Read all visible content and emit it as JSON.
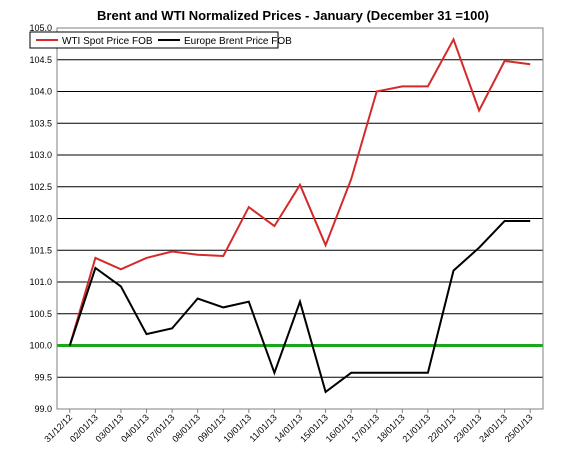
{
  "chart_data": {
    "type": "line",
    "title": "Brent and WTI Normalized Prices  -   January (December 31 =100)",
    "categories": [
      "31/12/12",
      "02/01/13",
      "03/01/13",
      "04/01/13",
      "07/01/13",
      "08/01/13",
      "09/01/13",
      "10/01/13",
      "11/01/13",
      "14/01/13",
      "15/01/13",
      "16/01/13",
      "17/01/13",
      "18/01/13",
      "21/01/13",
      "22/01/13",
      "23/01/13",
      "24/01/13",
      "25/01/13"
    ],
    "series": [
      {
        "name": "WTI Spot Price FOB",
        "color": "#d42a2a",
        "values": [
          100.0,
          101.38,
          101.2,
          101.38,
          101.48,
          101.43,
          101.41,
          102.18,
          101.88,
          102.53,
          101.58,
          102.62,
          104.0,
          104.08,
          104.08,
          104.82,
          103.7,
          104.48,
          104.43
        ]
      },
      {
        "name": "Europe Brent Price FOB",
        "color": "#000000",
        "values": [
          100.0,
          101.22,
          100.93,
          100.18,
          100.27,
          100.74,
          100.6,
          100.69,
          99.57,
          100.69,
          99.27,
          99.57,
          99.57,
          99.57,
          99.57,
          101.18,
          101.54,
          101.96,
          101.96
        ]
      }
    ],
    "reference_line": {
      "value": 100.0,
      "color": "#1aa81a"
    },
    "ylim": [
      99.0,
      105.0
    ],
    "yticks": [
      "99.0",
      "99.5",
      "100.0",
      "100.5",
      "101.0",
      "101.5",
      "102.0",
      "102.5",
      "103.0",
      "103.5",
      "104.0",
      "104.5",
      "105.0"
    ],
    "xlabel": "",
    "ylabel": "",
    "grid": "horizontal",
    "legend_position": "top-left"
  }
}
